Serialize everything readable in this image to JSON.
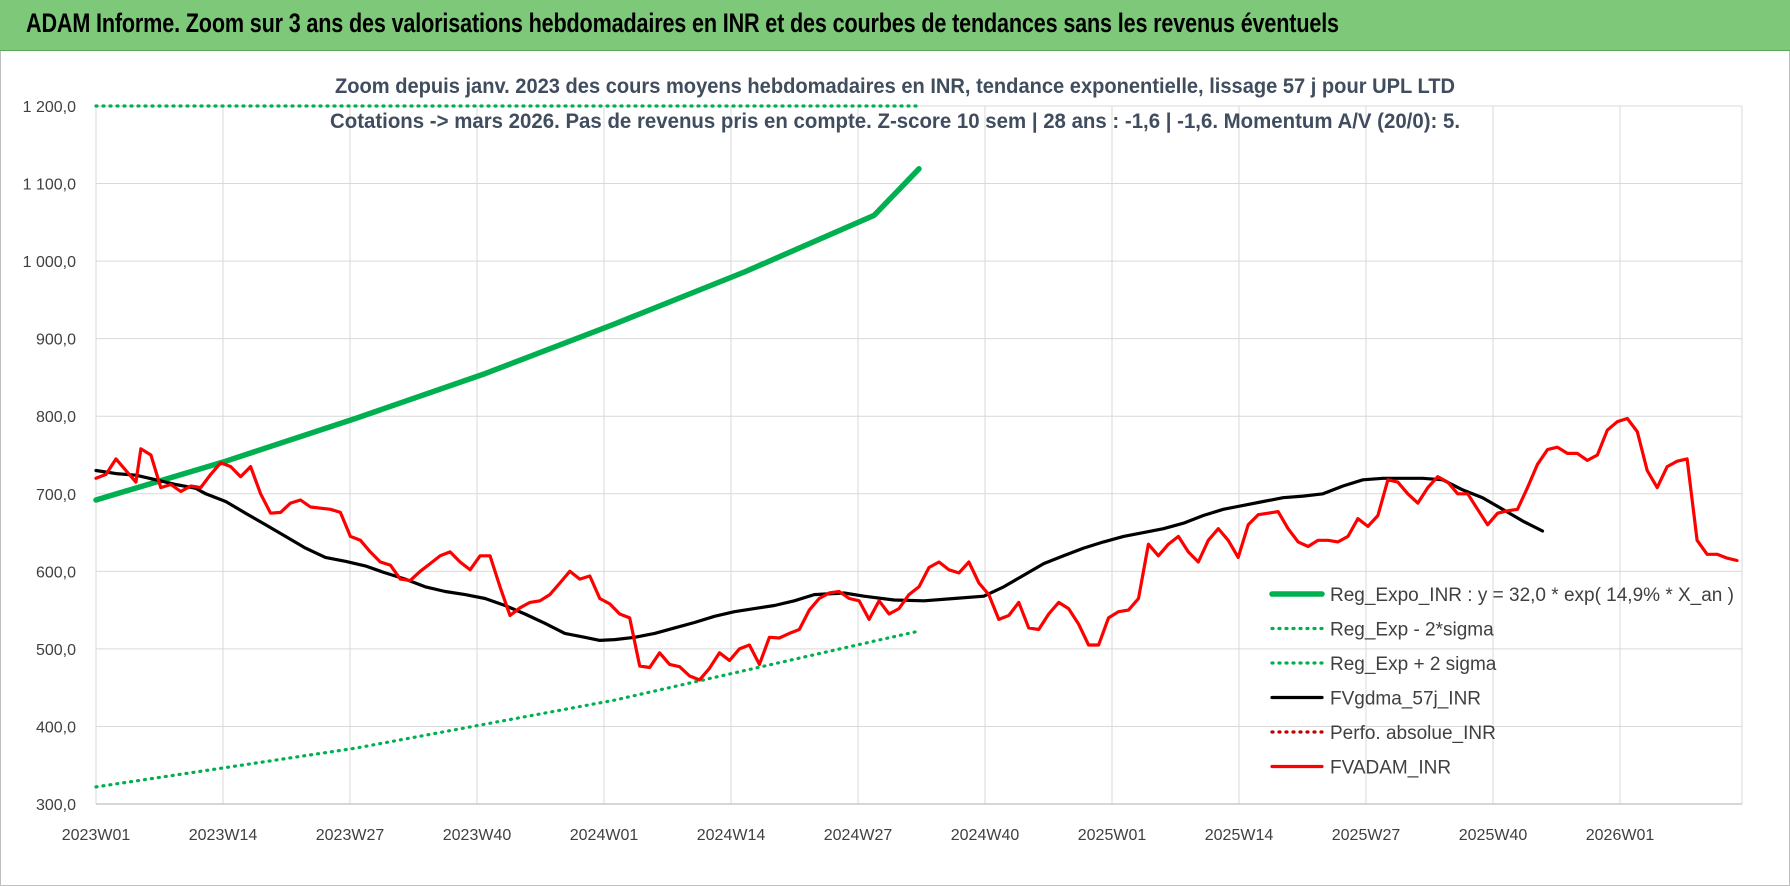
{
  "header": {
    "title": "ADAM Informe. Zoom sur 3 ans des valorisations hebdomadaires en INR et des courbes de tendances sans les revenus éventuels"
  },
  "colors": {
    "header_bg": "#7ec87a",
    "trend_green": "#00b050",
    "fvgdma_black": "#000000",
    "fvadam_red": "#ff0000",
    "perfo_red": "#c00000",
    "grid": "#d9d9d9",
    "title_text": "#404d5e"
  },
  "chart_data": {
    "type": "line",
    "title": "Zoom depuis janv. 2023 des cours moyens hebdomadaires en INR, tendance exponentielle, lissage 57 j pour UPL LTD",
    "subtitle": "Cotations -> mars 2026. Pas de revenus pris en compte. Z-score 10 sem | 28 ans : -1,6 | -1,6. Momentum A/V (20/0): 5.",
    "xlabel": "",
    "ylabel": "",
    "x_ticks": [
      "2023W01",
      "2023W14",
      "2023W27",
      "2023W40",
      "2024W01",
      "2024W14",
      "2024W27",
      "2024W40",
      "2025W01",
      "2025W14",
      "2025W27",
      "2025W40",
      "2026W01"
    ],
    "y_ticks": [
      "300,0",
      "400,0",
      "500,0",
      "600,0",
      "700,0",
      "800,0",
      "900,0",
      "1 000,0",
      "1 100,0",
      "1 200,0"
    ],
    "ylim": [
      300,
      1200
    ],
    "x_range_weeks": [
      0,
      165
    ],
    "grid": true,
    "legend_position": "right",
    "series": [
      {
        "name": "Reg_Expo_INR : y = 32,0 * exp( 14,9% *  X_an )",
        "style": "thick-solid",
        "color": "#00b050",
        "points": [
          [
            0,
            692
          ],
          [
            26,
            742
          ],
          [
            52,
            797
          ],
          [
            78,
            855
          ],
          [
            104,
            919
          ],
          [
            130,
            986
          ],
          [
            156,
            1059
          ],
          [
            165,
            1119
          ]
        ]
      },
      {
        "name": "Reg_Exp - 2*sigma",
        "style": "dotted",
        "color": "#00b050",
        "points": [
          [
            0,
            322
          ],
          [
            52,
            372
          ],
          [
            104,
            434
          ],
          [
            156,
            510
          ],
          [
            165,
            523
          ]
        ]
      },
      {
        "name": "Reg_Exp + 2 sigma",
        "style": "dotted",
        "color": "#00b050",
        "points": [
          [
            0,
            1200
          ],
          [
            165,
            1200
          ]
        ]
      },
      {
        "name": "FVgdma_57j_INR",
        "style": "solid",
        "color": "#000000",
        "points": [
          [
            0,
            730
          ],
          [
            4,
            726
          ],
          [
            8,
            724
          ],
          [
            12,
            718
          ],
          [
            16,
            712
          ],
          [
            20,
            707
          ],
          [
            22,
            700
          ],
          [
            26,
            690
          ],
          [
            30,
            675
          ],
          [
            34,
            660
          ],
          [
            38,
            645
          ],
          [
            42,
            630
          ],
          [
            46,
            618
          ],
          [
            50,
            613
          ],
          [
            54,
            607
          ],
          [
            58,
            598
          ],
          [
            62,
            590
          ],
          [
            66,
            580
          ],
          [
            70,
            574
          ],
          [
            74,
            570
          ],
          [
            78,
            565
          ],
          [
            82,
            556
          ],
          [
            86,
            545
          ],
          [
            90,
            533
          ],
          [
            94,
            520
          ],
          [
            98,
            515
          ],
          [
            101,
            511
          ],
          [
            104,
            512
          ],
          [
            108,
            515
          ],
          [
            112,
            520
          ],
          [
            116,
            527
          ],
          [
            120,
            534
          ],
          [
            124,
            542
          ],
          [
            128,
            548
          ],
          [
            132,
            552
          ],
          [
            136,
            556
          ],
          [
            140,
            562
          ],
          [
            144,
            570
          ],
          [
            150,
            572
          ],
          [
            154,
            568
          ],
          [
            160,
            563
          ],
          [
            166,
            562
          ],
          [
            172,
            565
          ],
          [
            178,
            568
          ],
          [
            182,
            580
          ],
          [
            186,
            595
          ],
          [
            190,
            610
          ],
          [
            194,
            620
          ],
          [
            198,
            630
          ],
          [
            202,
            638
          ],
          [
            206,
            645
          ],
          [
            210,
            650
          ],
          [
            214,
            655
          ],
          [
            218,
            662
          ],
          [
            222,
            672
          ],
          [
            226,
            680
          ],
          [
            230,
            685
          ],
          [
            234,
            690
          ],
          [
            238,
            695
          ],
          [
            242,
            697
          ],
          [
            246,
            700
          ],
          [
            250,
            710
          ],
          [
            254,
            718
          ],
          [
            258,
            720
          ],
          [
            262,
            720
          ],
          [
            266,
            720
          ],
          [
            270,
            718
          ],
          [
            274,
            705
          ],
          [
            278,
            695
          ],
          [
            282,
            680
          ],
          [
            286,
            665
          ],
          [
            290,
            652
          ]
        ]
      },
      {
        "name": "Perfo. absolue_INR",
        "style": "dotted",
        "color": "#c00000",
        "points": []
      },
      {
        "name": "FVADAM_INR",
        "style": "solid",
        "color": "#ff0000",
        "points": [
          [
            0,
            720
          ],
          [
            2,
            725
          ],
          [
            4,
            745
          ],
          [
            6,
            730
          ],
          [
            8,
            715
          ],
          [
            9,
            758
          ],
          [
            11,
            750
          ],
          [
            13,
            708
          ],
          [
            15,
            712
          ],
          [
            17,
            703
          ],
          [
            19,
            710
          ],
          [
            21,
            708
          ],
          [
            23,
            725
          ],
          [
            25,
            740
          ],
          [
            27,
            735
          ],
          [
            29,
            722
          ],
          [
            31,
            735
          ],
          [
            33,
            700
          ],
          [
            35,
            675
          ],
          [
            37,
            676
          ],
          [
            39,
            688
          ],
          [
            41,
            692
          ],
          [
            43,
            683
          ],
          [
            47,
            680
          ],
          [
            49,
            676
          ],
          [
            51,
            645
          ],
          [
            53,
            640
          ],
          [
            55,
            625
          ],
          [
            57,
            612
          ],
          [
            59,
            608
          ],
          [
            61,
            590
          ],
          [
            63,
            588
          ],
          [
            65,
            600
          ],
          [
            67,
            610
          ],
          [
            69,
            620
          ],
          [
            71,
            625
          ],
          [
            73,
            612
          ],
          [
            75,
            602
          ],
          [
            77,
            620
          ],
          [
            79,
            620
          ],
          [
            81,
            580
          ],
          [
            83,
            543
          ],
          [
            85,
            553
          ],
          [
            87,
            560
          ],
          [
            89,
            562
          ],
          [
            91,
            570
          ],
          [
            93,
            585
          ],
          [
            95,
            600
          ],
          [
            97,
            590
          ],
          [
            99,
            594
          ],
          [
            101,
            565
          ],
          [
            103,
            558
          ],
          [
            105,
            545
          ],
          [
            107,
            540
          ],
          [
            109,
            478
          ],
          [
            111,
            476
          ],
          [
            113,
            495
          ],
          [
            115,
            480
          ],
          [
            117,
            477
          ],
          [
            119,
            465
          ],
          [
            121,
            460
          ],
          [
            123,
            475
          ],
          [
            125,
            495
          ],
          [
            127,
            485
          ],
          [
            129,
            500
          ],
          [
            131,
            505
          ],
          [
            133,
            480
          ],
          [
            135,
            515
          ],
          [
            137,
            514
          ],
          [
            139,
            520
          ],
          [
            141,
            525
          ],
          [
            143,
            550
          ],
          [
            145,
            565
          ],
          [
            147,
            572
          ],
          [
            149,
            574
          ],
          [
            151,
            565
          ],
          [
            153,
            562
          ],
          [
            155,
            538
          ],
          [
            157,
            562
          ],
          [
            159,
            545
          ],
          [
            161,
            552
          ],
          [
            163,
            570
          ],
          [
            165,
            580
          ],
          [
            167,
            605
          ],
          [
            169,
            612
          ],
          [
            171,
            602
          ],
          [
            173,
            598
          ],
          [
            175,
            612
          ],
          [
            177,
            585
          ],
          [
            179,
            570
          ],
          [
            181,
            538
          ],
          [
            183,
            543
          ],
          [
            185,
            560
          ],
          [
            187,
            527
          ],
          [
            189,
            525
          ],
          [
            191,
            545
          ],
          [
            193,
            560
          ],
          [
            195,
            552
          ],
          [
            197,
            532
          ],
          [
            199,
            505
          ],
          [
            201,
            505
          ],
          [
            203,
            540
          ],
          [
            205,
            548
          ],
          [
            207,
            550
          ],
          [
            209,
            565
          ],
          [
            211,
            635
          ],
          [
            213,
            620
          ],
          [
            215,
            635
          ],
          [
            217,
            645
          ],
          [
            219,
            625
          ],
          [
            221,
            612
          ],
          [
            223,
            640
          ],
          [
            225,
            655
          ],
          [
            227,
            640
          ],
          [
            229,
            618
          ],
          [
            231,
            660
          ],
          [
            233,
            673
          ],
          [
            235,
            675
          ],
          [
            237,
            677
          ],
          [
            239,
            655
          ],
          [
            241,
            638
          ],
          [
            243,
            632
          ],
          [
            245,
            640
          ],
          [
            247,
            640
          ],
          [
            249,
            638
          ],
          [
            251,
            645
          ],
          [
            253,
            668
          ],
          [
            255,
            658
          ],
          [
            257,
            672
          ],
          [
            259,
            718
          ],
          [
            261,
            715
          ],
          [
            263,
            700
          ],
          [
            265,
            688
          ],
          [
            267,
            708
          ],
          [
            269,
            722
          ],
          [
            271,
            715
          ],
          [
            273,
            700
          ],
          [
            275,
            700
          ],
          [
            277,
            680
          ],
          [
            279,
            660
          ],
          [
            281,
            675
          ],
          [
            283,
            678
          ],
          [
            285,
            680
          ],
          [
            287,
            708
          ],
          [
            289,
            738
          ],
          [
            291,
            757
          ],
          [
            293,
            760
          ],
          [
            295,
            752
          ],
          [
            297,
            752
          ],
          [
            299,
            743
          ],
          [
            301,
            750
          ],
          [
            303,
            782
          ],
          [
            305,
            793
          ],
          [
            307,
            797
          ],
          [
            309,
            780
          ],
          [
            311,
            730
          ],
          [
            313,
            708
          ],
          [
            315,
            735
          ],
          [
            317,
            742
          ],
          [
            319,
            745
          ],
          [
            321,
            640
          ],
          [
            323,
            622
          ],
          [
            325,
            622
          ],
          [
            327,
            617
          ],
          [
            329,
            614
          ]
        ]
      }
    ]
  }
}
